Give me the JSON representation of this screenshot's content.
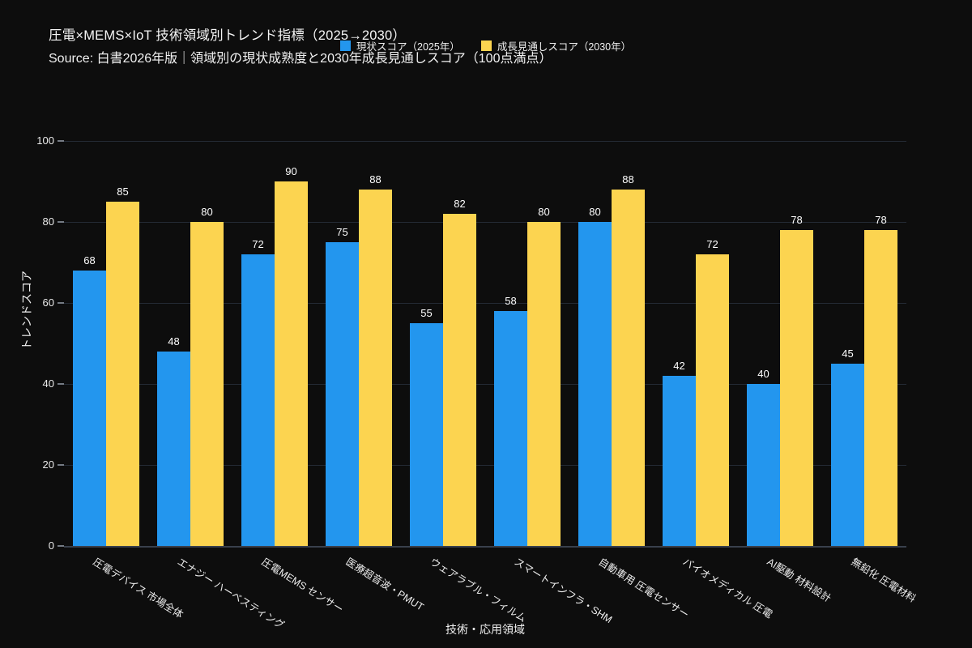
{
  "header": {
    "title": "圧電×MEMS×IoT 技術領域別トレンド指標（2025→2030）",
    "subtitle": "Source: 白書2026年版｜領域別の現状成熟度と2030年成長見通しスコア（100点満点）"
  },
  "legend": {
    "position": "top",
    "items": [
      {
        "label": "現状スコア（2025年）",
        "color": "#2396ee"
      },
      {
        "label": "成長見通しスコア（2030年）",
        "color": "#fcd450"
      }
    ]
  },
  "chart_data": {
    "type": "bar",
    "title": "圧電×MEMS×IoT 技術領域別トレンド指標（2025→2030）",
    "subtitle": "Source: 白書2026年版｜領域別の現状成熟度と2030年成長見通しスコア（100点満点）",
    "categories": [
      "圧電デバイス 市場全体",
      "エナジー ハーベスティング",
      "圧電MEMS センサー",
      "医療超音波・PMUT",
      "ウェアラブル・フィルム",
      "スマートインフラ・SHM",
      "自動車用 圧電センサー",
      "バイオメディカル 圧電",
      "AI駆動 材料設計",
      "無鉛化 圧電材料"
    ],
    "series": [
      {
        "name": "現状スコア（2025年）",
        "color": "#2396ee",
        "values": [
          68,
          48,
          72,
          75,
          55,
          58,
          80,
          42,
          40,
          45
        ]
      },
      {
        "name": "成長見通しスコア（2030年）",
        "color": "#fcd450",
        "values": [
          85,
          80,
          90,
          88,
          82,
          80,
          88,
          72,
          78,
          78
        ]
      }
    ],
    "xlabel": "技術・応用領域",
    "ylabel": "トレンドスコア",
    "ylim": [
      0,
      100
    ],
    "yticks": [
      0,
      20,
      40,
      60,
      80,
      100
    ],
    "grid": true,
    "value_labels": true,
    "legend_position": "top"
  },
  "colors": {
    "background": "#0d0d0d",
    "grid": "#242a34",
    "axis": "#39404c",
    "text": "#f2f2f2"
  }
}
